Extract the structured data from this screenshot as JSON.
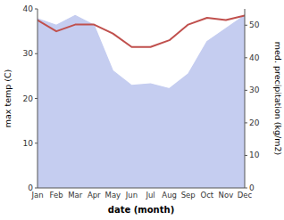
{
  "chart_data": {
    "type": "line",
    "xlabel": "date (month)",
    "ylabel": "max temp (C)",
    "y2label": "med. precipitation (kg/m2)",
    "categories": [
      "Jan",
      "Feb",
      "Mar",
      "Apr",
      "May",
      "Jun",
      "Jul",
      "Aug",
      "Sep",
      "Oct",
      "Nov",
      "Dec"
    ],
    "series": [
      {
        "type": "area",
        "axis": "y2",
        "color": "#c5cdf0",
        "values": [
          52.0,
          50.0,
          53.0,
          50.0,
          36.0,
          31.5,
          32.0,
          30.5,
          35.0,
          45.0,
          49.0,
          53.0
        ]
      },
      {
        "type": "line",
        "color": "#c0504d",
        "values": [
          37.5,
          35.0,
          36.5,
          36.5,
          34.5,
          31.5,
          31.5,
          33.0,
          36.5,
          38.0,
          37.5,
          38.5
        ]
      }
    ],
    "ylim": [
      0,
      40
    ],
    "yticks": [
      0,
      10,
      20,
      30,
      40
    ],
    "y2lim": [
      0,
      55
    ],
    "y2ticks": [
      0,
      10,
      20,
      30,
      40,
      50
    ]
  }
}
